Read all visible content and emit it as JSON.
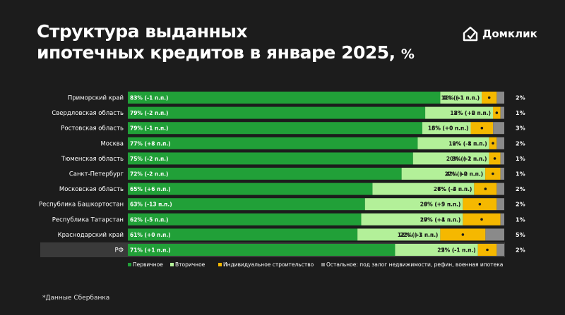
{
  "title_line1": "Структура выданных",
  "title_line2": "ипотечных кредитов в январе 2025,",
  "title_unit": "%",
  "brand": {
    "name": "Домклик",
    "icon": "domclick-house-icon"
  },
  "footnote": "*Данные Сбербанка",
  "colors": {
    "background": "#1c1c1c",
    "primary": "#21a038",
    "secondary": "#b3f099",
    "individual": "#f5b800",
    "other": "#8a8a8a",
    "highlight_row": "#3a3a3a"
  },
  "chart_data": {
    "type": "bar",
    "stacked": true,
    "orientation": "horizontal",
    "unit": "%",
    "categories": [
      "Приморский край",
      "Свердловская область",
      "Ростовская область",
      "Москва",
      "Тюменская область",
      "Санкт-Петербург",
      "Московская область",
      "Республика Башкортостан",
      "Республика Татарстан",
      "Краснодарский край",
      "РФ"
    ],
    "highlighted_category": "РФ",
    "series": [
      {
        "name": "Первичное",
        "values": [
          83,
          79,
          79,
          77,
          75,
          72,
          65,
          63,
          62,
          61,
          71
        ],
        "labels": [
          "83% (-1 п.п.)",
          "79% (-2 п.п.)",
          "79% (-1 п.п.)",
          "77% (+8 п.п.)",
          "75% (-2 п.п.)",
          "72% (-2 п.п.)",
          "65% (+6 п.п.)",
          "63% (-13 п.п.)",
          "62% (-5 п.п.)",
          "61% (+0 п.п.)",
          "71% (+1 п.п.)"
        ]
      },
      {
        "name": "Вторичное",
        "values": [
          11,
          18,
          13,
          19,
          20,
          22,
          27,
          26,
          27,
          22,
          22
        ],
        "labels": [
          "11% (-1 п.п.)",
          "18% (+2 п.п.)",
          "13% (+0 п.п.)",
          "19% (-8 п.п.)",
          "20% (+2 п.п.)",
          "22% (-2 п.п.)",
          "27% (-3 п.п.)",
          "26% (+9 п.п.)",
          "27% (+4 п.п.)",
          "22% (-3 п.п.)",
          "22% (-1 п.п.)"
        ]
      },
      {
        "name": "Индивидуальное строительство",
        "values": [
          4,
          2,
          6,
          2,
          3,
          4,
          6,
          9,
          10,
          12,
          5
        ],
        "labels": [
          "4% (+1 п.п.)",
          "2% (+0 п.п.)",
          "6% (+0 п.п.)",
          "2% (-1 п.п.)",
          "3% (-1 п.п.)",
          "4% (+0 п.п.)",
          "6% (-4 п.п.)",
          "9% (+3 п.п.)",
          "10% (+1 п.п.)",
          "12% (+1 п.п.)",
          "5% (-1 п.п.)"
        ]
      },
      {
        "name": "Остальное: под залог недвижимости, рефин, военная ипотека",
        "values": [
          2,
          1,
          3,
          2,
          1,
          1,
          2,
          2,
          1,
          5,
          2
        ],
        "labels": [
          "2%",
          "1%",
          "3%",
          "2%",
          "1%",
          "1%",
          "2%",
          "2%",
          "1%",
          "5%",
          "2%"
        ]
      }
    ],
    "xlim": [
      0,
      100
    ],
    "legend_position": "bottom"
  }
}
